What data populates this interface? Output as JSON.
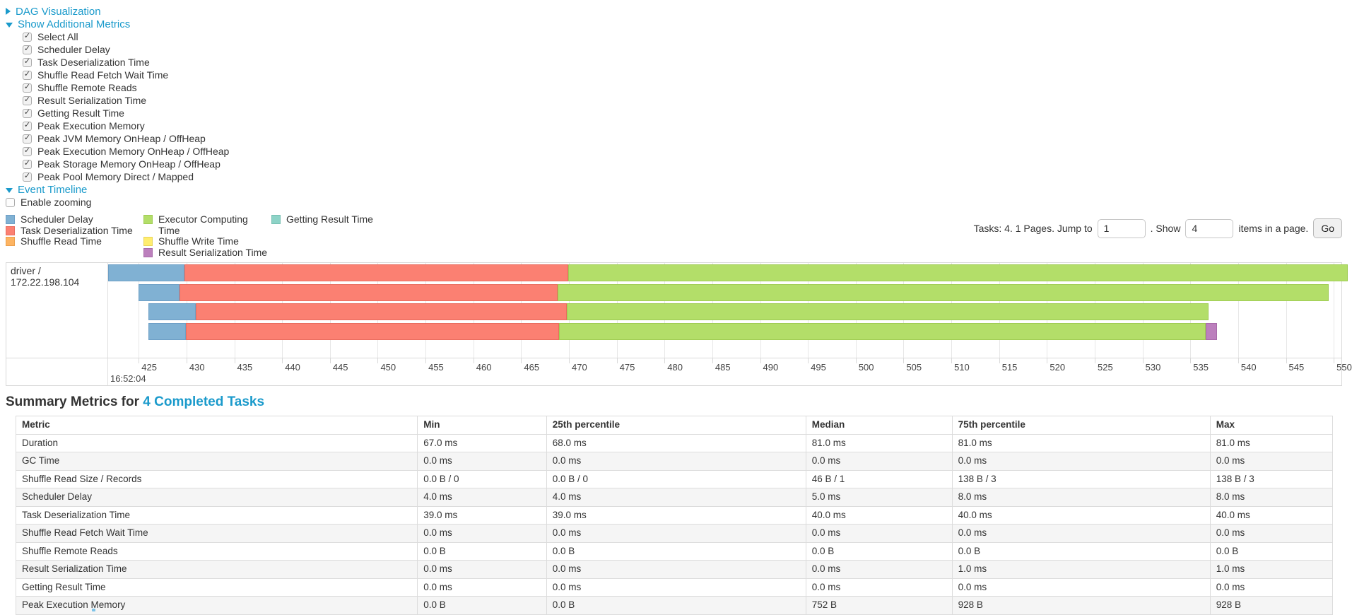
{
  "colors": {
    "scheduler_delay": {
      "fill": "#80B1D3",
      "border": "#6d9fc6"
    },
    "task_deserialization": {
      "fill": "#FB8072",
      "border": "#e96c5e"
    },
    "shuffle_read": {
      "fill": "#FDB462",
      "border": "#eb9f4c"
    },
    "executor_computing": {
      "fill": "#B3DE69",
      "border": "#9fcc53"
    },
    "shuffle_write": {
      "fill": "#FFED6F",
      "border": "#e8d558"
    },
    "result_serialization": {
      "fill": "#BC80BD",
      "border": "#a86aa9"
    },
    "getting_result": {
      "fill": "#8DD3C7",
      "border": "#76bfb2"
    }
  },
  "toggles": {
    "dag_label": "DAG Visualization",
    "metrics_label": "Show Additional Metrics",
    "timeline_label": "Event Timeline"
  },
  "metrics_panel": {
    "items": [
      {
        "label": "Select All",
        "checked": true
      },
      {
        "label": "Scheduler Delay",
        "checked": true
      },
      {
        "label": "Task Deserialization Time",
        "checked": true
      },
      {
        "label": "Shuffle Read Fetch Wait Time",
        "checked": true
      },
      {
        "label": "Shuffle Remote Reads",
        "checked": true
      },
      {
        "label": "Result Serialization Time",
        "checked": true
      },
      {
        "label": "Getting Result Time",
        "checked": true
      },
      {
        "label": "Peak Execution Memory",
        "checked": true
      },
      {
        "label": "Peak JVM Memory OnHeap / OffHeap",
        "checked": true
      },
      {
        "label": "Peak Execution Memory OnHeap / OffHeap",
        "checked": true
      },
      {
        "label": "Peak Storage Memory OnHeap / OffHeap",
        "checked": true
      },
      {
        "label": "Peak Pool Memory Direct / Mapped",
        "checked": true
      }
    ]
  },
  "enable_zooming": {
    "label": "Enable zooming",
    "checked": false
  },
  "timeline": {
    "legend_columns": [
      [
        {
          "label": "Scheduler Delay",
          "k": "scheduler_delay"
        },
        {
          "label": "Task Deserialization Time",
          "k": "task_deserialization"
        },
        {
          "label": "Shuffle Read Time",
          "k": "shuffle_read"
        }
      ],
      [
        {
          "label": "Executor Computing Time",
          "k": "executor_computing"
        },
        {
          "label": "Shuffle Write Time",
          "k": "shuffle_write"
        },
        {
          "label": "Result Serialization Time",
          "k": "result_serialization"
        }
      ],
      [
        {
          "label": "Getting Result Time",
          "k": "getting_result"
        }
      ]
    ],
    "pagination": {
      "tasks_label": "Tasks: 4. 1 Pages. Jump to",
      "jump_value": "1",
      "show_label": ". Show",
      "show_value": "4",
      "suffix_label": "items in a page.",
      "go_label": "Go"
    },
    "group_label": "driver / 172.22.198.104",
    "domain_ms": [
      421.8,
      550.8
    ],
    "ticks_ms": [
      425,
      430,
      435,
      440,
      445,
      450,
      455,
      460,
      465,
      470,
      475,
      480,
      485,
      490,
      495,
      500,
      505,
      510,
      515,
      520,
      525,
      530,
      535,
      540,
      545,
      550
    ],
    "major_tick_label": "16:52:04",
    "rows": [
      {
        "segments": [
          {
            "k": "scheduler_delay",
            "t0": 421.8,
            "t1": 429.8
          },
          {
            "k": "task_deserialization",
            "t0": 429.8,
            "t1": 469.9
          },
          {
            "k": "executor_computing",
            "t0": 469.9,
            "t1": 551.5
          }
        ]
      },
      {
        "segments": [
          {
            "k": "scheduler_delay",
            "t0": 425.0,
            "t1": 429.3
          },
          {
            "k": "task_deserialization",
            "t0": 429.3,
            "t1": 468.8
          },
          {
            "k": "executor_computing",
            "t0": 468.8,
            "t1": 549.5
          }
        ]
      },
      {
        "segments": [
          {
            "k": "scheduler_delay",
            "t0": 426.0,
            "t1": 431.0
          },
          {
            "k": "task_deserialization",
            "t0": 431.0,
            "t1": 469.8
          },
          {
            "k": "executor_computing",
            "t0": 469.8,
            "t1": 536.9
          }
        ]
      },
      {
        "segments": [
          {
            "k": "scheduler_delay",
            "t0": 426.0,
            "t1": 429.9
          },
          {
            "k": "task_deserialization",
            "t0": 429.9,
            "t1": 469.0
          },
          {
            "k": "executor_computing",
            "t0": 469.0,
            "t1": 536.6
          },
          {
            "k": "result_serialization",
            "t0": 536.6,
            "t1": 537.8
          }
        ]
      }
    ]
  },
  "summary": {
    "heading": "Summary Metrics for",
    "link": "4 Completed Tasks",
    "table": {
      "headers": [
        "Metric",
        "Min",
        "25th percentile",
        "Median",
        "75th percentile",
        "Max"
      ],
      "rows": [
        {
          "metric": "Duration",
          "min": "67.0 ms",
          "p25": "68.0 ms",
          "median": "81.0 ms",
          "p75": "81.0 ms",
          "max": "81.0 ms"
        },
        {
          "metric": "GC Time",
          "min": "0.0 ms",
          "p25": "0.0 ms",
          "median": "0.0 ms",
          "p75": "0.0 ms",
          "max": "0.0 ms"
        },
        {
          "metric": "Shuffle Read Size / Records",
          "min": "0.0 B / 0",
          "p25": "0.0 B / 0",
          "median": "46 B / 1",
          "p75": "138 B / 3",
          "max": "138 B / 3"
        },
        {
          "metric": "Scheduler Delay",
          "min": "4.0 ms",
          "p25": "4.0 ms",
          "median": "5.0 ms",
          "p75": "8.0 ms",
          "max": "8.0 ms"
        },
        {
          "metric": "Task Deserialization Time",
          "min": "39.0 ms",
          "p25": "39.0 ms",
          "median": "40.0 ms",
          "p75": "40.0 ms",
          "max": "40.0 ms"
        },
        {
          "metric": "Shuffle Read Fetch Wait Time",
          "min": "0.0 ms",
          "p25": "0.0 ms",
          "median": "0.0 ms",
          "p75": "0.0 ms",
          "max": "0.0 ms"
        },
        {
          "metric": "Shuffle Remote Reads",
          "min": "0.0 B",
          "p25": "0.0 B",
          "median": "0.0 B",
          "p75": "0.0 B",
          "max": "0.0 B"
        },
        {
          "metric": "Result Serialization Time",
          "min": "0.0 ms",
          "p25": "0.0 ms",
          "median": "0.0 ms",
          "p75": "1.0 ms",
          "max": "1.0 ms"
        },
        {
          "metric": "Getting Result Time",
          "min": "0.0 ms",
          "p25": "0.0 ms",
          "median": "0.0 ms",
          "p75": "0.0 ms",
          "max": "0.0 ms"
        },
        {
          "metric": "Peak Execution Memory",
          "min": "0.0 B",
          "p25": "0.0 B",
          "median": "752 B",
          "p75": "928 B",
          "max": "928 B"
        }
      ]
    }
  }
}
